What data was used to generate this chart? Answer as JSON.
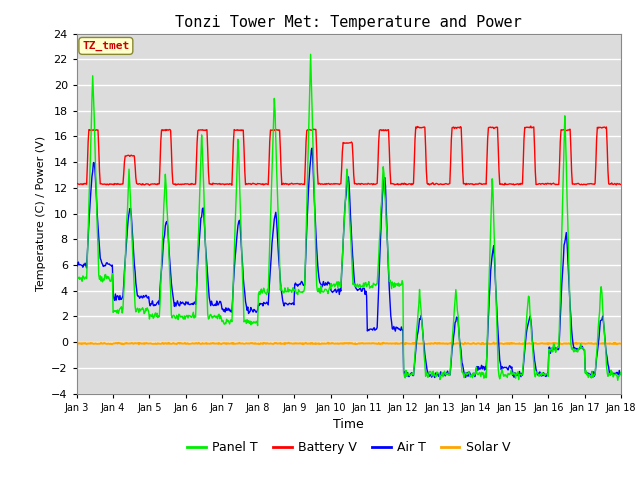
{
  "title": "Tonzi Tower Met: Temperature and Power",
  "xlabel": "Time",
  "ylabel": "Temperature (C) / Power (V)",
  "annotation": "TZ_tmet",
  "xlim": [
    0,
    15
  ],
  "ylim": [
    -4,
    24
  ],
  "yticks": [
    -4,
    -2,
    0,
    2,
    4,
    6,
    8,
    10,
    12,
    14,
    16,
    18,
    20,
    22,
    24
  ],
  "xtick_labels": [
    "Jan 3",
    "Jan 4",
    "Jan 5",
    "Jan 6",
    "Jan 7",
    "Jan 8",
    "Jan 9",
    "Jan 10",
    "Jan 11",
    "Jan 12",
    "Jan 13",
    "Jan 14",
    "Jan 15",
    "Jan 16",
    "Jan 17",
    "Jan 18"
  ],
  "xtick_positions": [
    0,
    1,
    2,
    3,
    4,
    5,
    6,
    7,
    8,
    9,
    10,
    11,
    12,
    13,
    14,
    15
  ],
  "colors": {
    "panel_t": "#00EE00",
    "battery_v": "#FF0000",
    "air_t": "#0000FF",
    "solar_v": "#FFA500"
  },
  "bg_color": "#DCDCDC",
  "legend_labels": [
    "Panel T",
    "Battery V",
    "Air T",
    "Solar V"
  ]
}
